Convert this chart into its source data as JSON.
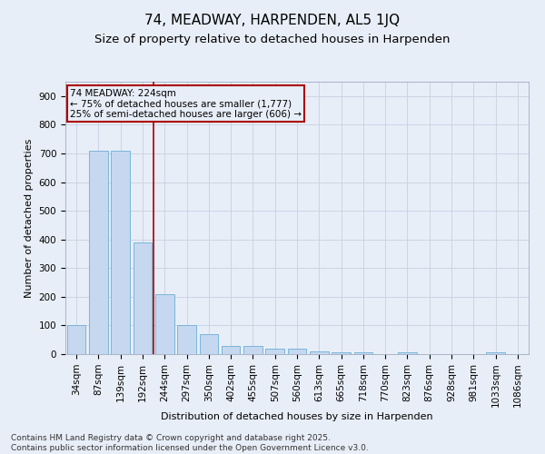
{
  "title": "74, MEADWAY, HARPENDEN, AL5 1JQ",
  "subtitle": "Size of property relative to detached houses in Harpenden",
  "xlabel": "Distribution of detached houses by size in Harpenden",
  "ylabel": "Number of detached properties",
  "bar_labels": [
    "34sqm",
    "87sqm",
    "139sqm",
    "192sqm",
    "244sqm",
    "297sqm",
    "350sqm",
    "402sqm",
    "455sqm",
    "507sqm",
    "560sqm",
    "613sqm",
    "665sqm",
    "718sqm",
    "770sqm",
    "823sqm",
    "876sqm",
    "928sqm",
    "981sqm",
    "1033sqm",
    "1086sqm"
  ],
  "bar_values": [
    100,
    710,
    710,
    390,
    210,
    100,
    70,
    30,
    30,
    18,
    18,
    8,
    5,
    5,
    0,
    5,
    0,
    0,
    0,
    5,
    0
  ],
  "bar_color": "#c5d8f0",
  "bar_edge_color": "#6baed6",
  "bar_width": 0.85,
  "ylim": [
    0,
    950
  ],
  "yticks": [
    0,
    100,
    200,
    300,
    400,
    500,
    600,
    700,
    800,
    900
  ],
  "vline_x": 3.5,
  "vline_color": "#aa0000",
  "annotation_line1": "74 MEADWAY: 224sqm",
  "annotation_line2": "← 75% of detached houses are smaller (1,777)",
  "annotation_line3": "25% of semi-detached houses are larger (606) →",
  "annotation_box_color": "#aa0000",
  "footer_text": "Contains HM Land Registry data © Crown copyright and database right 2025.\nContains public sector information licensed under the Open Government Licence v3.0.",
  "bg_color": "#e8eef8",
  "grid_color": "#c8d0e0",
  "title_fontsize": 11,
  "subtitle_fontsize": 9.5,
  "axis_label_fontsize": 8,
  "tick_fontsize": 7.5,
  "annotation_fontsize": 7.5,
  "footer_fontsize": 6.5
}
